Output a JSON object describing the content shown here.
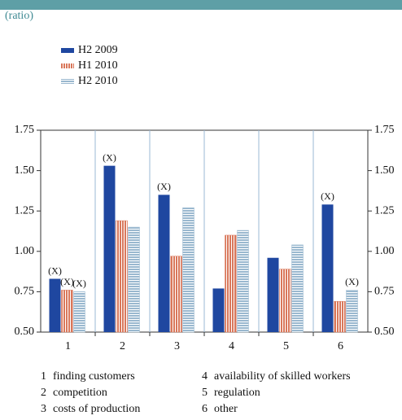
{
  "chart_data": {
    "type": "bar",
    "subtitle": "(ratio)",
    "categories": [
      "1",
      "2",
      "3",
      "4",
      "5",
      "6"
    ],
    "category_names": [
      "finding customers",
      "competition",
      "costs of production",
      "availability of skilled workers",
      "regulation",
      "other"
    ],
    "series": [
      {
        "name": "H2 2009",
        "color": "#1f47a0",
        "pattern": "solid",
        "values": [
          0.83,
          1.53,
          1.35,
          0.77,
          0.96,
          1.29
        ],
        "notes": [
          "(X)",
          "(X)",
          "(X)",
          null,
          null,
          "(X)"
        ]
      },
      {
        "name": "H1 2010",
        "color": "#d9775a",
        "pattern": "vertical",
        "values": [
          0.76,
          1.19,
          0.97,
          1.1,
          0.89,
          0.69
        ],
        "notes": [
          "(X)",
          null,
          null,
          null,
          null,
          null
        ]
      },
      {
        "name": "H2 2010",
        "color": "#9ab8cf",
        "pattern": "horizontal",
        "values": [
          0.75,
          1.15,
          1.27,
          1.13,
          1.04,
          0.76
        ],
        "notes": [
          "(X)",
          null,
          null,
          null,
          null,
          "(X)"
        ]
      }
    ],
    "ylim": [
      0.5,
      1.75
    ],
    "yticks": [
      {
        "value": 0.5,
        "label": "0.50"
      },
      0.75,
      {
        "value": 1.0,
        "label": "1.00"
      },
      1.25,
      {
        "value": 1.5,
        "label": "1.50"
      },
      1.75
    ],
    "mirror_y_axis": true,
    "category_grid": true
  }
}
